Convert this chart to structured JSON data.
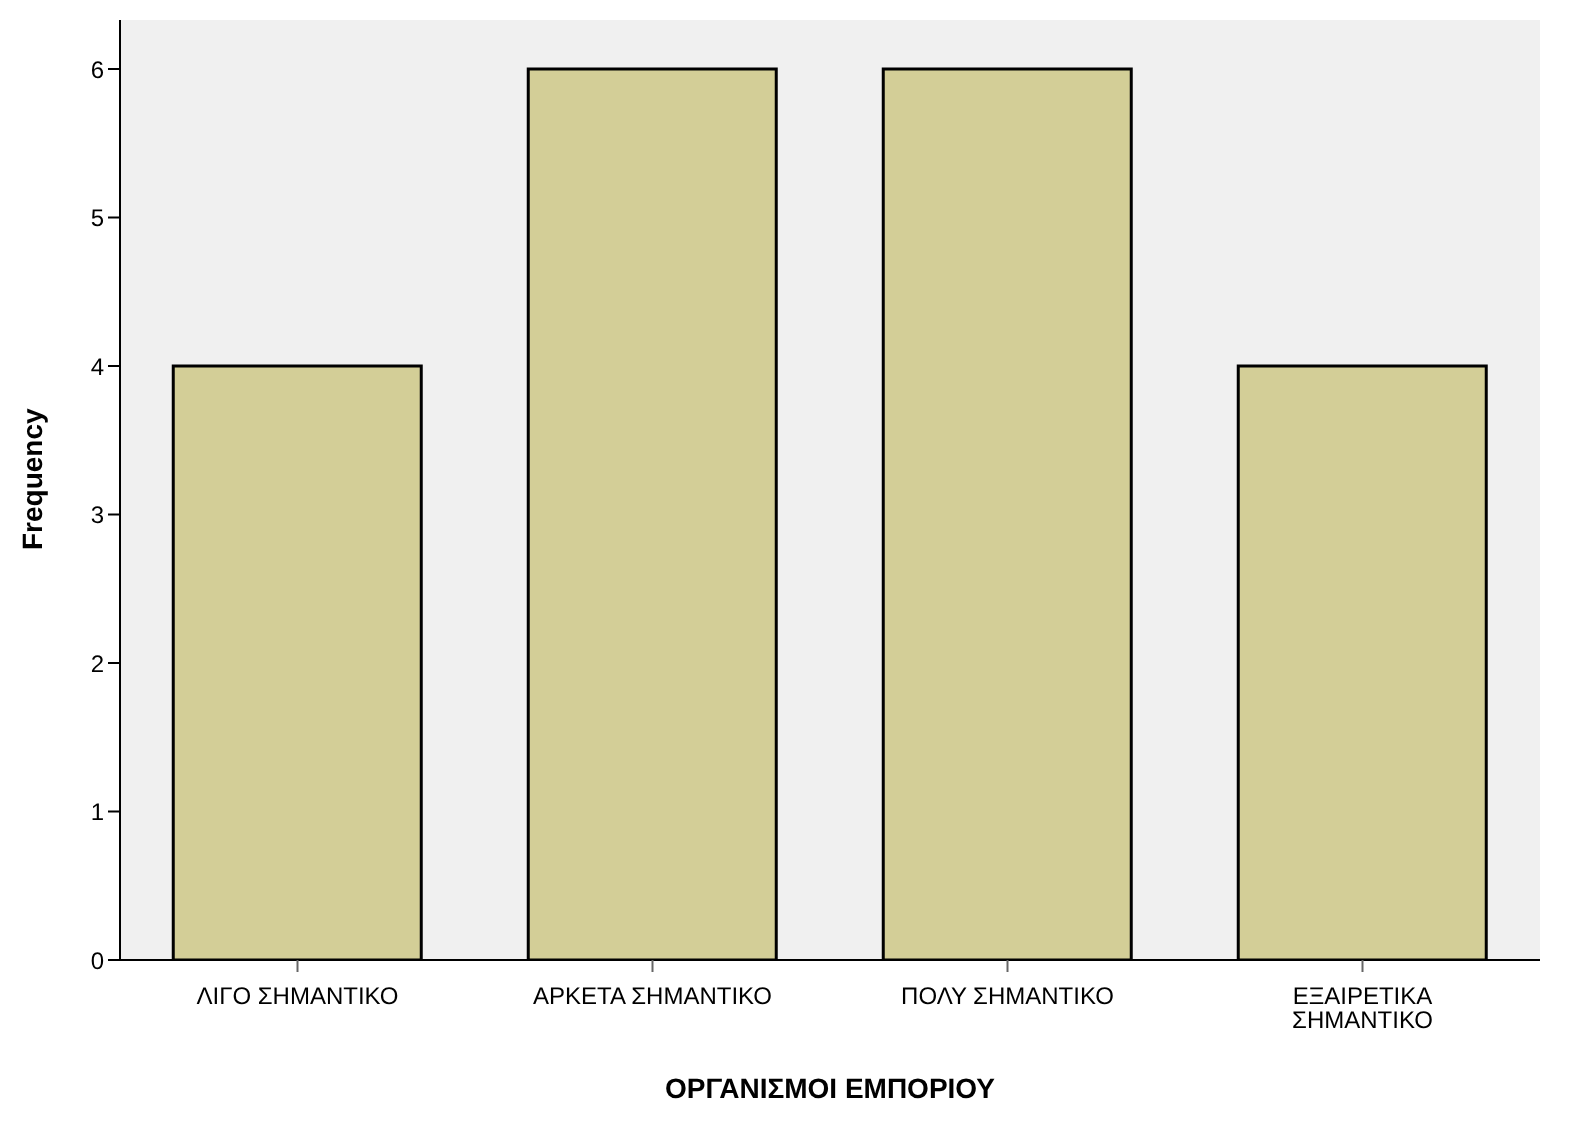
{
  "chart_data": {
    "type": "bar",
    "xlabel": "ΟΡΓΑΝΙΣΜΟΙ  ΕΜΠΟΡΙΟΥ",
    "ylabel": "Frequency",
    "categories": [
      "ΛΙΓΟ ΣΗΜΑΝΤΙΚΟ",
      "ΑΡΚΕΤΑ ΣΗΜΑΝΤΙΚΟ",
      "ΠΟΛΥ ΣΗΜΑΝΤΙΚΟ",
      "ΕΞΑΙΡΕΤΙΚΑ\nΣΗΜΑΝΤΙΚΟ"
    ],
    "values": [
      4,
      6,
      6,
      4
    ],
    "color": "#d3ce97",
    "ylim": [
      0,
      6.33
    ],
    "yticks": [
      0,
      1,
      2,
      3,
      4,
      5,
      6
    ],
    "grid": false,
    "legend": false
  }
}
